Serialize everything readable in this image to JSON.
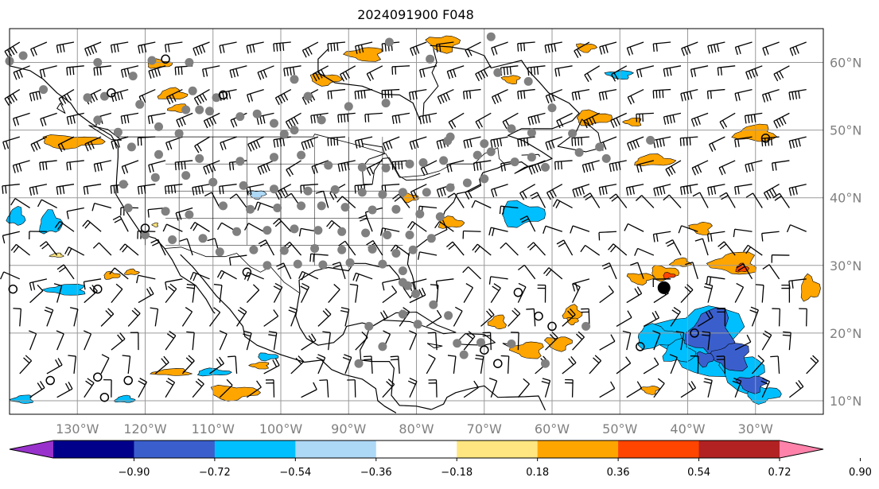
{
  "title": "2024091900 F048",
  "map": {
    "lon_range": [
      -140,
      -20
    ],
    "lat_range": [
      8,
      65
    ],
    "lon_ticks": [
      -130,
      -120,
      -110,
      -100,
      -90,
      -80,
      -70,
      -60,
      -50,
      -40,
      -30
    ],
    "lon_tick_labels": [
      "130°W",
      "120°W",
      "110°W",
      "100°W",
      "90°W",
      "80°W",
      "70°W",
      "60°W",
      "50°W",
      "40°W",
      "30°W"
    ],
    "lat_ticks": [
      60,
      50,
      40,
      30,
      20,
      10
    ],
    "lat_tick_labels": [
      "60°N",
      "50°N",
      "40°N",
      "30°N",
      "20°N",
      "10°N"
    ],
    "gridlines": true,
    "colors": {
      "grid": "#9a9a9a",
      "coast": "#000000",
      "station": "#808080",
      "barb": "#000000"
    }
  },
  "colorbar": {
    "tick_labels": [
      "−0.90",
      "−0.72",
      "−0.54",
      "−0.36",
      "−0.18",
      "0.18",
      "0.36",
      "0.54",
      "0.72",
      "0.90"
    ],
    "colors": [
      "#9932cc",
      "#00008b",
      "#3a5fcd",
      "#00bfff",
      "#add8f6",
      "#ffffff",
      "#ffe680",
      "#ffa500",
      "#ff4500",
      "#b22222",
      "#ff82ab"
    ],
    "extend": "both"
  },
  "marker": {
    "lon": -43.5,
    "lat": 26.7
  }
}
